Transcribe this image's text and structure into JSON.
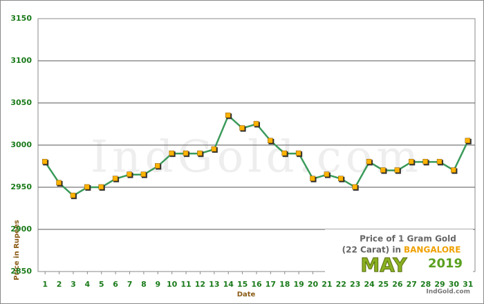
{
  "chart_data": {
    "type": "line",
    "xlabel": "Date",
    "ylabel": "Price in Rupees",
    "x": [
      1,
      2,
      3,
      4,
      5,
      6,
      7,
      8,
      9,
      10,
      11,
      12,
      13,
      14,
      15,
      16,
      17,
      18,
      19,
      20,
      21,
      22,
      23,
      24,
      25,
      26,
      27,
      28,
      29,
      30,
      31
    ],
    "series": [
      {
        "color": "#3a9a5a",
        "marker_color": "#ffb300",
        "values": [
          2980,
          2955,
          2940,
          2950,
          2950,
          2960,
          2965,
          2965,
          2975,
          2990,
          2990,
          2990,
          2995,
          3035,
          3020,
          3025,
          3005,
          2990,
          2990,
          2960,
          2965,
          2960,
          2950,
          2980,
          2970,
          2970,
          2980,
          2980,
          2980,
          2970,
          3005
        ]
      }
    ],
    "xlim": [
      0.5,
      31.5
    ],
    "xticks": [
      1,
      2,
      3,
      4,
      5,
      6,
      7,
      8,
      9,
      10,
      11,
      12,
      13,
      14,
      15,
      16,
      17,
      18,
      19,
      20,
      21,
      22,
      23,
      24,
      25,
      26,
      27,
      28,
      29,
      30,
      31
    ],
    "ylim": [
      2850,
      3150
    ],
    "yticks": [
      2850,
      2900,
      2950,
      3000,
      3050,
      3100,
      3150
    ],
    "grid": true,
    "annotations": {
      "watermark": "IndGold.com",
      "box_line1": "Price of 1 Gram Gold",
      "box_line2": "(22 Carat) in",
      "box_city": "BANGALORE",
      "box_month": "MAY",
      "box_year": "2019",
      "box_site": "IndGold.com"
    }
  }
}
